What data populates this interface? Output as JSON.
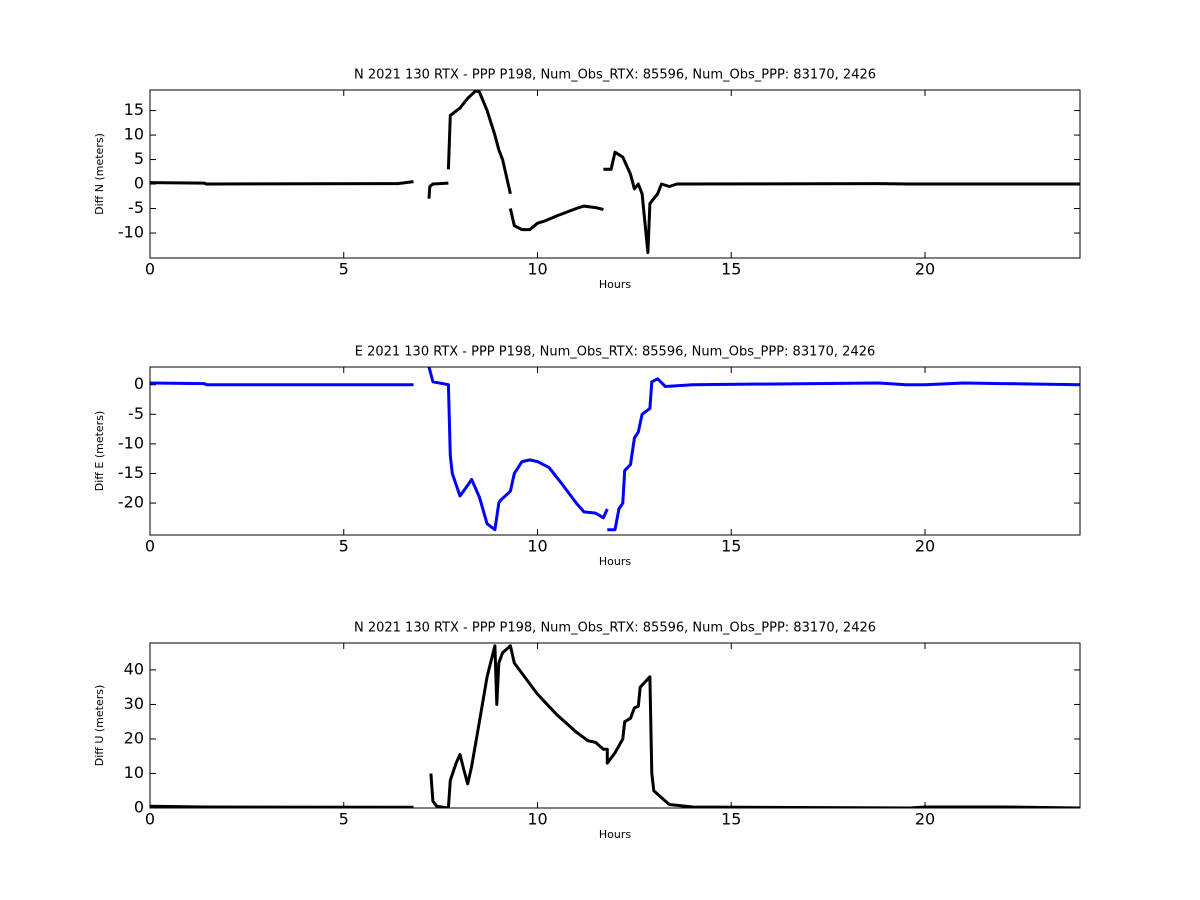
{
  "chart_data": [
    {
      "type": "line",
      "title": "N 2021 130 RTX - PPP  P198, Num_Obs_RTX: 85596, Num_Obs_PPP: 83170, 2426",
      "xlabel": "Hours",
      "ylabel": "Diff N (meters)",
      "color": "#000000",
      "xlim": [
        0,
        24
      ],
      "ylim": [
        -15.1,
        19.2
      ],
      "xticks": [
        0,
        5,
        10,
        15,
        20
      ],
      "yticks": [
        -10,
        -5,
        0,
        5,
        10,
        15
      ],
      "x": [
        0,
        1.4,
        1.45,
        6.4,
        6.8,
        null,
        7.2,
        7.22,
        7.3,
        7.7,
        null,
        7.7,
        7.75,
        8.0,
        8.2,
        8.4,
        8.5,
        8.7,
        8.9,
        9.0,
        9.1,
        9.3,
        null,
        9.3,
        9.4,
        9.6,
        9.8,
        10.0,
        10.2,
        10.5,
        11.0,
        11.2,
        11.5,
        11.7,
        null,
        11.7,
        11.9,
        12.0,
        12.2,
        12.4,
        12.5,
        12.6,
        12.7,
        12.85,
        12.9,
        13.1,
        13.2,
        13.4,
        13.6,
        18.8,
        19.6,
        24
      ],
      "values": [
        0.3,
        0.2,
        0.0,
        0.1,
        0.5,
        null,
        -3,
        -0.5,
        0,
        0.2,
        null,
        3,
        14,
        15.5,
        17.5,
        19,
        18.8,
        15,
        10,
        7,
        5,
        -2,
        null,
        -5,
        -8.5,
        -9.3,
        -9.3,
        -8,
        -7.5,
        -6.5,
        -5,
        -4.5,
        -4.8,
        -5.2,
        null,
        3,
        3,
        6.5,
        5.5,
        2,
        -1,
        0,
        -2,
        -14,
        -4,
        -2,
        0,
        -0.5,
        0,
        0.1,
        0,
        0
      ]
    },
    {
      "type": "line",
      "title": "E 2021 130 RTX - PPP  P198, Num_Obs_RTX: 85596, Num_Obs_PPP: 83170, 2426",
      "xlabel": "Hours",
      "ylabel": "Diff E (meters)",
      "color": "#0000ff",
      "xlim": [
        0,
        24
      ],
      "ylim": [
        -25.4,
        3.0
      ],
      "xticks": [
        0,
        5,
        10,
        15,
        20
      ],
      "yticks": [
        -20,
        -15,
        -10,
        -5,
        0
      ],
      "x": [
        0,
        1.4,
        1.45,
        6.8,
        null,
        7.2,
        7.3,
        7.7,
        7.75,
        7.8,
        8.0,
        8.2,
        8.3,
        8.5,
        8.7,
        8.9,
        9.0,
        9.05,
        9.3,
        9.4,
        9.6,
        9.8,
        10.0,
        10.3,
        10.6,
        11.0,
        11.2,
        11.5,
        11.7,
        11.8,
        null,
        11.8,
        12.0,
        12.1,
        12.2,
        12.25,
        12.4,
        12.5,
        12.6,
        12.7,
        12.9,
        12.95,
        13.1,
        13.3,
        14,
        18.8,
        19.5,
        20,
        21,
        22,
        24
      ],
      "values": [
        0.3,
        0.2,
        0,
        0,
        null,
        3,
        0.5,
        0,
        -12,
        -15,
        -18.8,
        -17,
        -16,
        -19,
        -23.5,
        -24.5,
        -20,
        -19.5,
        -18,
        -15,
        -13,
        -12.7,
        -13,
        -14,
        -16.5,
        -20,
        -21.5,
        -21.7,
        -22.5,
        -21,
        null,
        -24.5,
        -24.5,
        -21,
        -20,
        -14.5,
        -13.5,
        -9,
        -8,
        -5,
        -4,
        0.5,
        1,
        -0.3,
        0,
        0.3,
        0,
        0,
        0.3,
        0.2,
        0
      ]
    },
    {
      "type": "line",
      "title": "N 2021 130 RTX - PPP  P198, Num_Obs_RTX: 85596, Num_Obs_PPP: 83170, 2426",
      "xlabel": "Hours",
      "ylabel": "Diff U (meters)",
      "color": "#000000",
      "xlim": [
        0,
        24
      ],
      "ylim": [
        0,
        47.8
      ],
      "xticks": [
        0,
        5,
        10,
        15,
        20
      ],
      "yticks": [
        0,
        10,
        20,
        30,
        40
      ],
      "x": [
        0,
        1.4,
        6.8,
        null,
        7.25,
        7.3,
        7.4,
        7.7,
        7.75,
        7.9,
        8.0,
        8.1,
        8.2,
        8.3,
        8.5,
        8.7,
        8.9,
        8.95,
        9.0,
        9.1,
        9.3,
        9.4,
        9.6,
        10.0,
        10.5,
        11.0,
        11.3,
        11.5,
        11.7,
        11.8,
        11.8,
        12.0,
        12.2,
        12.25,
        12.4,
        12.5,
        12.6,
        12.65,
        12.9,
        12.95,
        13.0,
        13.2,
        13.4,
        14,
        19.6,
        20,
        22,
        24
      ],
      "values": [
        0.5,
        0.3,
        0.2,
        null,
        10,
        2,
        0.5,
        0,
        8,
        13,
        15.5,
        11,
        7,
        12,
        25,
        38,
        47,
        30,
        42,
        45,
        47,
        42,
        39,
        33,
        27,
        22,
        19.5,
        19,
        17,
        17,
        13,
        16,
        20,
        25,
        26,
        29,
        29.5,
        35,
        38,
        10,
        5,
        3,
        1,
        0.3,
        0,
        0.3,
        0.3,
        0
      ]
    }
  ]
}
